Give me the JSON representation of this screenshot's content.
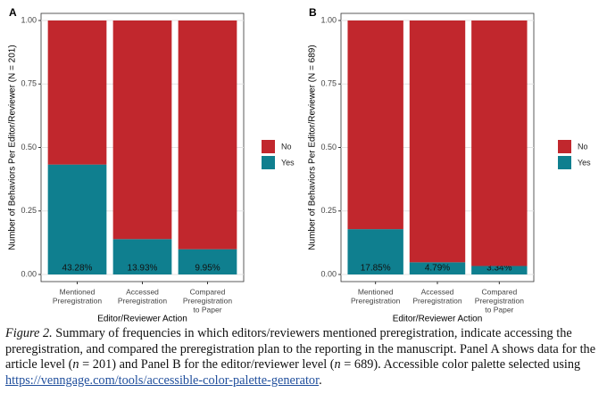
{
  "chart_data": [
    {
      "type": "stacked_bar",
      "panel": "A",
      "y_label": "Number of Behaviors Per Editor/Reviewer (N = 201)",
      "x_label": "Editor/Reviewer Action",
      "categories": [
        [
          "Mentioned",
          "Preregistration"
        ],
        [
          "Accessed",
          "Preregistration"
        ],
        [
          "Compared",
          "Preregistration",
          "to Paper"
        ]
      ],
      "series": [
        {
          "name": "No",
          "color": "#c1272d",
          "values": [
            0.5672,
            0.8607,
            0.9005
          ]
        },
        {
          "name": "Yes",
          "color": "#0f7f8f",
          "values": [
            0.4328,
            0.1393,
            0.0995
          ],
          "value_labels": [
            "43.28%",
            "13.93%",
            "9.95%"
          ]
        }
      ],
      "ylim": [
        0,
        1
      ],
      "yticks": [
        {
          "value": 0,
          "label": "0.00"
        },
        {
          "value": 0.25,
          "label": "0.25"
        },
        {
          "value": 0.5,
          "label": "0.50"
        },
        {
          "value": 0.75,
          "label": "0.75"
        },
        {
          "value": 1,
          "label": "1.00"
        }
      ],
      "grid": true,
      "legend": "right"
    },
    {
      "type": "stacked_bar",
      "panel": "B",
      "y_label": "Number of Behaviors Per Editor/Reviewer (N = 689)",
      "x_label": "Editor/Reviewer Action",
      "categories": [
        [
          "Mentioned",
          "Preregistration"
        ],
        [
          "Accessed",
          "Preregistration"
        ],
        [
          "Compared",
          "Preregistration",
          "to Paper"
        ]
      ],
      "series": [
        {
          "name": "No",
          "color": "#c1272d",
          "values": [
            0.8215,
            0.9521,
            0.9666
          ]
        },
        {
          "name": "Yes",
          "color": "#0f7f8f",
          "values": [
            0.1785,
            0.0479,
            0.0334
          ],
          "value_labels": [
            "17.85%",
            "4.79%",
            "3.34%"
          ]
        }
      ],
      "ylim": [
        0,
        1
      ],
      "yticks": [
        {
          "value": 0,
          "label": "0.00"
        },
        {
          "value": 0.25,
          "label": "0.25"
        },
        {
          "value": 0.5,
          "label": "0.50"
        },
        {
          "value": 0.75,
          "label": "0.75"
        },
        {
          "value": 1,
          "label": "1.00"
        }
      ],
      "grid": true,
      "legend": "right"
    }
  ],
  "caption": {
    "label": "Figure 2.",
    "parts": [
      " Summary of frequencies in which editors/reviewers mentioned preregistration, indicate accessing the preregistration, and compared the preregistration plan to the reporting in the manuscript. Panel A shows data for the article level (",
      "n",
      " = 201) and Panel B for the editor/reviewer level (",
      "n",
      " = 689). Accessible color palette selected using ",
      "https://venngage.com/tools/accessible-color-palette-generator",
      "."
    ]
  }
}
